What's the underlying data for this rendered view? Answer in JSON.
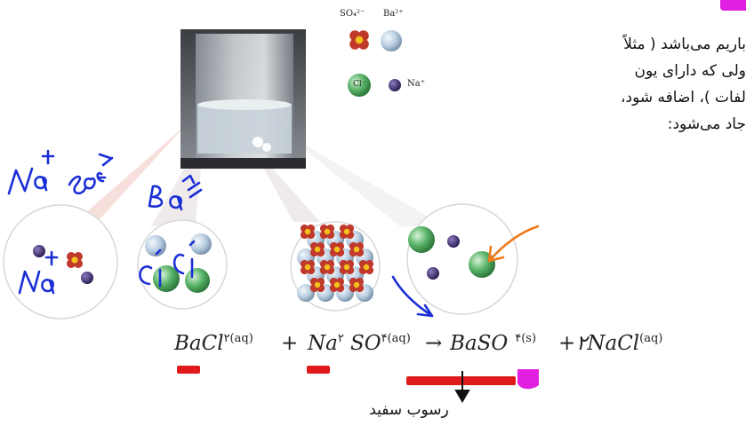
{
  "text_lines": [
    "باریم می‌باشد ( مثلاً",
    "ولی که دارای یون",
    "لفات )، اضافه شود،",
    "جاد می‌شود:"
  ],
  "legend": {
    "sulfate": "SO₄²⁻",
    "barium": "Ba²⁺",
    "chloride": "Cl⁻",
    "sodium": "Na⁺"
  },
  "equation": {
    "term1": "BaCl",
    "term1_sub": "۲(aq)",
    "plus1": "+",
    "term2a": "Na",
    "term2a_sub": "۲",
    "term2b": "SO",
    "term2b_sub": "۴(aq)",
    "arrow": "→",
    "term3": "BaSO",
    "term3_sub": "۴(s)",
    "plus2": "+",
    "term4": "۲NaCl",
    "term4_sub": "(aq)"
  },
  "caption": "رسوب سفید",
  "colors": {
    "sulfate": "#c0392b",
    "barium": "#b9cde0",
    "chloride": "#5bb56a",
    "sodium": "#4b3a7a",
    "ink_blue": "#1b2fd6",
    "ink_orange": "#f07a1a",
    "highlight_red": "#e01a1a",
    "highlight_pink": "#e11fe0"
  }
}
